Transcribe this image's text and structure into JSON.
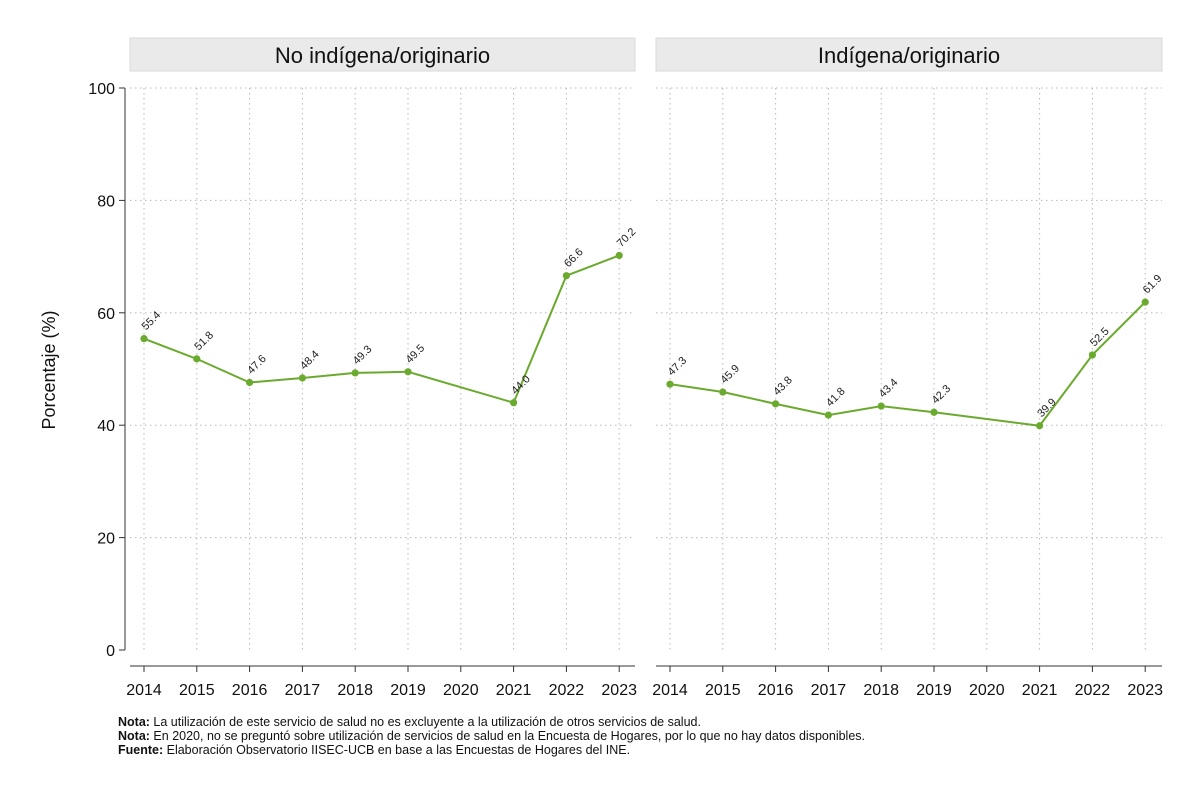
{
  "chart_data": {
    "type": "line",
    "ylabel": "Porcentaje (%)",
    "ylim": [
      0,
      100
    ],
    "yticks": [
      0,
      20,
      40,
      60,
      80,
      100
    ],
    "x": [
      "2014",
      "2015",
      "2016",
      "2017",
      "2018",
      "2019",
      "2020",
      "2021",
      "2022",
      "2023"
    ],
    "grid": true,
    "line_color": "#6aaa2e",
    "panels": [
      {
        "title": "No indígena/originario",
        "points": [
          {
            "x": "2014",
            "y": 55.4,
            "label": "55.4"
          },
          {
            "x": "2015",
            "y": 51.8,
            "label": "51.8"
          },
          {
            "x": "2016",
            "y": 47.6,
            "label": "47.6"
          },
          {
            "x": "2017",
            "y": 48.4,
            "label": "48.4"
          },
          {
            "x": "2018",
            "y": 49.3,
            "label": "49.3"
          },
          {
            "x": "2019",
            "y": 49.5,
            "label": "49.5"
          },
          {
            "x": "2021",
            "y": 44.0,
            "label": "44.0"
          },
          {
            "x": "2022",
            "y": 66.6,
            "label": "66.6"
          },
          {
            "x": "2023",
            "y": 70.2,
            "label": "70.2"
          }
        ]
      },
      {
        "title": "Indígena/originario",
        "points": [
          {
            "x": "2014",
            "y": 47.3,
            "label": "47.3"
          },
          {
            "x": "2015",
            "y": 45.9,
            "label": "45.9"
          },
          {
            "x": "2016",
            "y": 43.8,
            "label": "43.8"
          },
          {
            "x": "2017",
            "y": 41.8,
            "label": "41.8"
          },
          {
            "x": "2018",
            "y": 43.4,
            "label": "43.4"
          },
          {
            "x": "2019",
            "y": 42.3,
            "label": "42.3"
          },
          {
            "x": "2021",
            "y": 39.9,
            "label": "39.9"
          },
          {
            "x": "2022",
            "y": 52.5,
            "label": "52.5"
          },
          {
            "x": "2023",
            "y": 61.9,
            "label": "61.9"
          }
        ]
      }
    ]
  },
  "notes": [
    {
      "prefix": "Nota:",
      "text": " La utilización de este servicio de salud no es excluyente a la utilización de otros servicios de salud."
    },
    {
      "prefix": "Nota:",
      "text": " En 2020, no se preguntó sobre utilización de servicios de salud en la Encuesta de Hogares, por lo que no hay datos disponibles."
    },
    {
      "prefix": "Fuente:",
      "text": " Elaboración Observatorio IISEC-UCB en base a las Encuestas de Hogares del INE."
    }
  ]
}
